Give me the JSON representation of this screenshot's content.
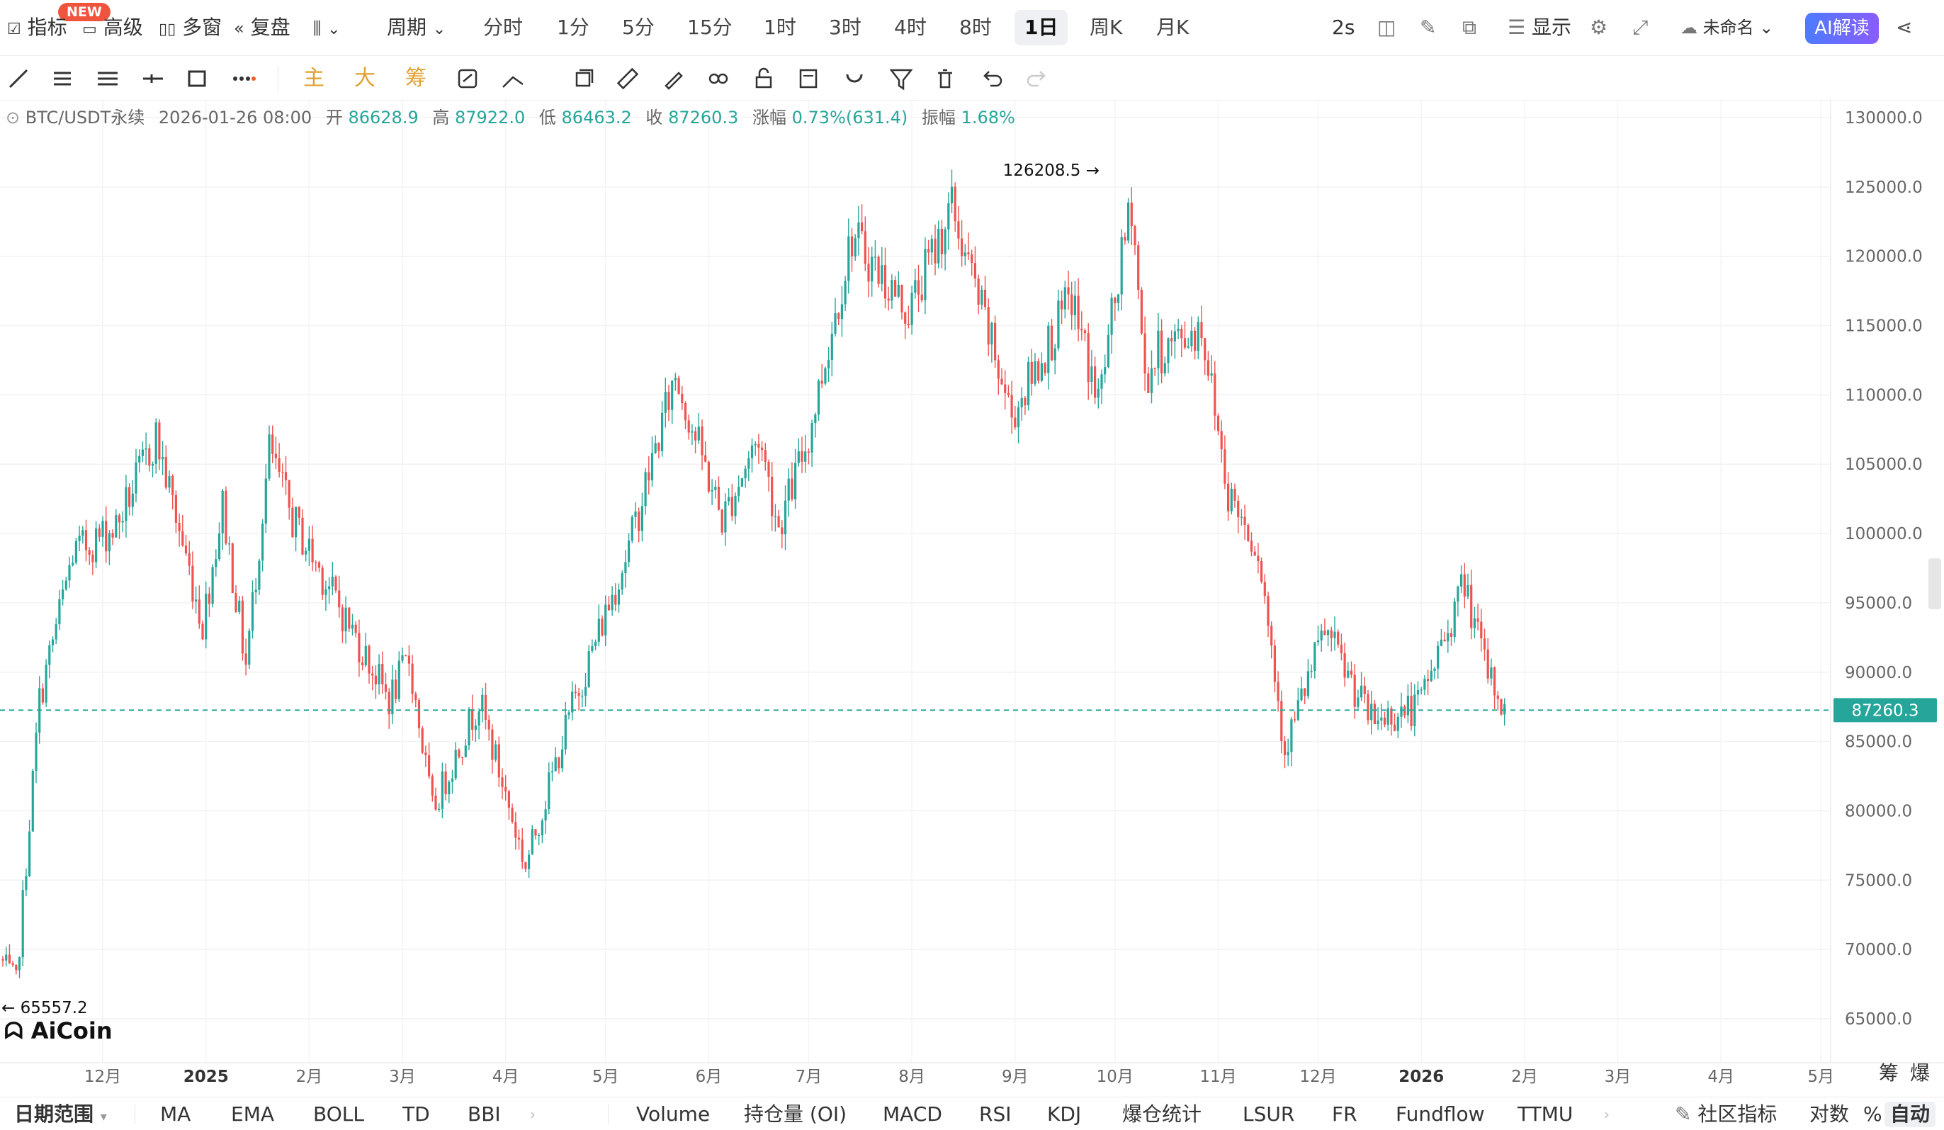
{
  "toolbar": {
    "new_badge": "NEW",
    "indicators": "指标",
    "advanced": "高级",
    "multi_window": "多窗",
    "replay": "复盘",
    "period": "周期",
    "periods": [
      "分时",
      "1分",
      "5分",
      "15分",
      "1时",
      "3时",
      "4时",
      "8时",
      "1日",
      "周K",
      "月K"
    ],
    "active_period": "1日",
    "refresh": "2s",
    "display": "显示",
    "unnamed": "未命名",
    "ai": "AI解读"
  },
  "draw_toolbar": {
    "main": "主",
    "big": "大",
    "chips": "筹"
  },
  "info": {
    "symbol": "BTC/USDT永续",
    "datetime": "2026-01-26 08:00",
    "open_label": "开",
    "open": "86628.9",
    "high_label": "高",
    "high": "87922.0",
    "low_label": "低",
    "low": "86463.2",
    "close_label": "收",
    "close": "87260.3",
    "change_label": "涨幅",
    "change": "0.73%(631.4)",
    "amplitude_label": "振幅",
    "amplitude": "1.68%"
  },
  "logo": "AiCoin",
  "chart_data": {
    "type": "candlestick",
    "ylim": [
      62500,
      132000
    ],
    "y_ticks": [
      "130000.0",
      "125000.0",
      "120000.0",
      "115000.0",
      "110000.0",
      "105000.0",
      "100000.0",
      "95000.0",
      "90000.0",
      "85000.0",
      "80000.0",
      "75000.0",
      "70000.0",
      "65000.0"
    ],
    "x_ticks": [
      "12月",
      "2025",
      "2月",
      "3月",
      "4月",
      "5月",
      "6月",
      "7月",
      "8月",
      "9月",
      "10月",
      "11月",
      "12月",
      "2026",
      "2月",
      "3月",
      "4月",
      "5月"
    ],
    "last_price": "87260.3",
    "max_label": "126208.5",
    "min_label": "65557.2",
    "up_color": "#26a69a",
    "down_color": "#ef5350",
    "anchors": [
      [
        "2024-11-01",
        69000
      ],
      [
        "2024-11-05",
        67500
      ],
      [
        "2024-11-12",
        88000
      ],
      [
        "2024-11-22",
        98500
      ],
      [
        "2024-12-05",
        100500
      ],
      [
        "2024-12-17",
        107000
      ],
      [
        "2024-12-31",
        93500
      ],
      [
        "2025-01-06",
        102000
      ],
      [
        "2025-01-13",
        90500
      ],
      [
        "2025-01-20",
        106000
      ],
      [
        "2025-01-27",
        101000
      ],
      [
        "2025-02-05",
        97000
      ],
      [
        "2025-02-25",
        88000
      ],
      [
        "2025-03-03",
        91000
      ],
      [
        "2025-03-10",
        80000
      ],
      [
        "2025-03-24",
        88000
      ],
      [
        "2025-03-31",
        82000
      ],
      [
        "2025-04-07",
        76000
      ],
      [
        "2025-04-21",
        87500
      ],
      [
        "2025-05-08",
        99000
      ],
      [
        "2025-05-22",
        111500
      ],
      [
        "2025-06-05",
        101000
      ],
      [
        "2025-06-16",
        107000
      ],
      [
        "2025-06-22",
        100500
      ],
      [
        "2025-07-01",
        107000
      ],
      [
        "2025-07-14",
        121500
      ],
      [
        "2025-07-31",
        116000
      ],
      [
        "2025-08-13",
        123500
      ],
      [
        "2025-08-31",
        108500
      ],
      [
        "2025-09-18",
        117000
      ],
      [
        "2025-09-26",
        109500
      ],
      [
        "2025-10-06",
        124000
      ],
      [
        "2025-10-10",
        111000
      ],
      [
        "2025-10-14",
        113000
      ],
      [
        "2025-10-27",
        115000
      ],
      [
        "2025-11-04",
        103000
      ],
      [
        "2025-11-13",
        99000
      ],
      [
        "2025-11-21",
        84500
      ],
      [
        "2025-12-03",
        93000
      ],
      [
        "2025-12-17",
        86500
      ],
      [
        "2025-12-31",
        87500
      ],
      [
        "2026-01-14",
        96500
      ],
      [
        "2026-01-20",
        90500
      ],
      [
        "2026-01-26",
        87260
      ]
    ]
  },
  "bottom": {
    "date_range": "日期范围",
    "indicators": [
      "MA",
      "EMA",
      "BOLL",
      "TD",
      "BBI"
    ],
    "sub_indicators": [
      "Volume",
      "持仓量 (OI)",
      "MACD",
      "RSI",
      "KDJ",
      "爆仓统计",
      "LSUR",
      "FR",
      "Fundflow",
      "TTMU"
    ],
    "community": "社区指标",
    "log": "对数",
    "percent": "%",
    "auto": "自动",
    "chips": "筹",
    "liquidation": "爆"
  }
}
